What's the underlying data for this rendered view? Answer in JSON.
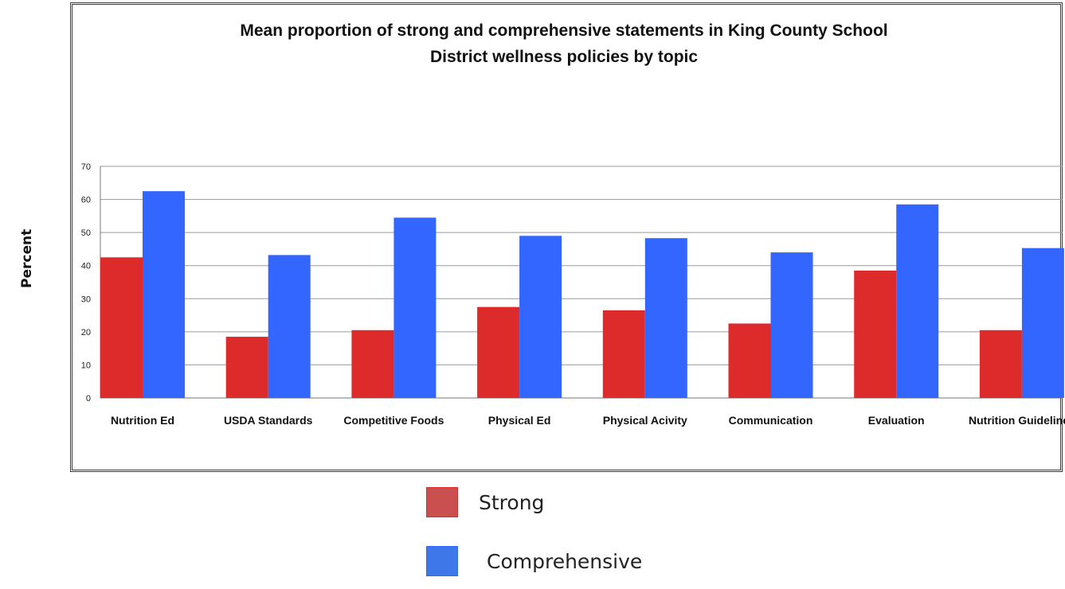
{
  "chart_data": {
    "type": "bar",
    "title_lines": [
      "Mean proportion of strong and comprehensive statements in King County School",
      "District wellness policies by topic"
    ],
    "xlabel": "",
    "ylabel": "Percent",
    "ylim": [
      0,
      70
    ],
    "yticks": [
      "0",
      "10",
      "20",
      "30",
      "40",
      "50",
      "60",
      "70"
    ],
    "grid": true,
    "legend_position": "bottom-center",
    "categories": [
      "Nutrition Ed",
      "USDA Standards",
      "Competitive Foods",
      "Physical Ed",
      "Physical Acivity",
      "Communication",
      "Evaluation",
      "Nutrition Guidelines"
    ],
    "series": [
      {
        "name": "Strong",
        "color": "#dd2a2a",
        "legend_color": "#c9504e",
        "values": [
          42.5,
          18.5,
          20.5,
          27.5,
          26.5,
          22.5,
          38.5,
          20.5
        ]
      },
      {
        "name": "Comprehensive",
        "color": "#3366ff",
        "legend_color": "#3e78e8",
        "values": [
          62.5,
          43.2,
          54.5,
          49,
          48.3,
          44,
          58.5,
          45.3
        ]
      }
    ]
  }
}
